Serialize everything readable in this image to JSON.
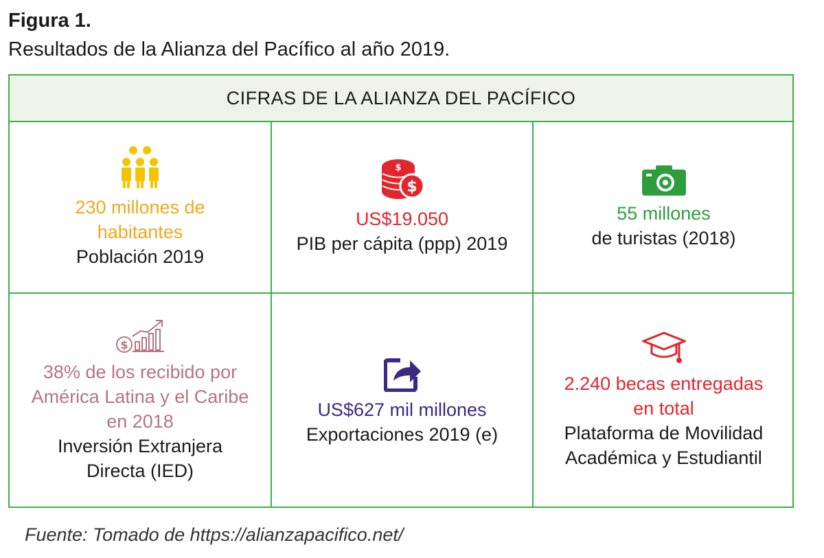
{
  "figure": {
    "label": "Figura 1.",
    "caption": "Resultados de la Alianza del Pacífico al año 2019."
  },
  "panel": {
    "title": "CIFRAS DE LA ALIANZA DEL PACÍFICO",
    "cells": [
      {
        "icon": "people-icon",
        "color": "#f0a81c",
        "value_lines": [
          "230 millones de",
          "habitantes"
        ],
        "desc_lines": [
          "Población 2019"
        ]
      },
      {
        "icon": "coins-dollar-icon",
        "color": "#e1262d",
        "value_lines": [
          "US$19.050"
        ],
        "desc_lines": [
          "PIB per cápita (ppp) 2019"
        ]
      },
      {
        "icon": "camera-icon",
        "color": "#2e9e3d",
        "value_lines": [
          "55 millones"
        ],
        "desc_lines": [
          "de turistas (2018)"
        ]
      },
      {
        "icon": "investment-chart-icon",
        "color": "#b57484",
        "value_lines": [
          "38% de los recibido por",
          "América Latina y el Caribe",
          "en 2018"
        ],
        "desc_lines": [
          "Inversión Extranjera",
          "Directa (IED)"
        ]
      },
      {
        "icon": "export-share-icon",
        "color": "#3b2a82",
        "value_lines": [
          "US$627 mil millones"
        ],
        "desc_lines": [
          "Exportaciones 2019 (e)"
        ]
      },
      {
        "icon": "graduation-cap-icon",
        "color": "#e1262d",
        "value_lines": [
          "2.240 becas entregadas",
          "en total"
        ],
        "desc_lines": [
          "Plataforma de Movilidad",
          "Académica y Estudiantil"
        ]
      }
    ]
  },
  "source": "Fuente: Tomado de https://alianzapacifico.net/"
}
